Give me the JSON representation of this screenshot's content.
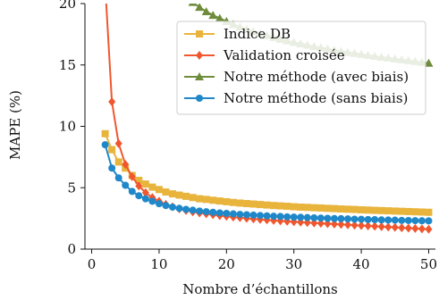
{
  "chart_data": {
    "type": "line",
    "xlabel": "Nombre d’échantillons",
    "ylabel": "MAPE (%)",
    "xlim": [
      -1,
      51
    ],
    "ylim": [
      0,
      20
    ],
    "x_ticks": [
      0,
      10,
      20,
      30,
      40,
      50
    ],
    "y_ticks": [
      0,
      5,
      10,
      15,
      20
    ],
    "grid": false,
    "legend_position": "top-right",
    "series": [
      {
        "name": "Indice DB",
        "color": "#e8b43c",
        "marker": "square",
        "x": [
          2,
          3,
          4,
          5,
          6,
          7,
          8,
          9,
          10,
          11,
          12,
          13,
          14,
          15,
          16,
          17,
          18,
          19,
          20,
          21,
          22,
          23,
          24,
          25,
          26,
          27,
          28,
          29,
          30,
          31,
          32,
          33,
          34,
          35,
          36,
          37,
          38,
          39,
          40,
          41,
          42,
          43,
          44,
          45,
          46,
          47,
          48,
          49,
          50
        ],
        "values": [
          9.4,
          8.1,
          7.1,
          6.6,
          6.0,
          5.6,
          5.3,
          5.05,
          4.85,
          4.65,
          4.5,
          4.4,
          4.3,
          4.2,
          4.1,
          4.05,
          3.98,
          3.92,
          3.86,
          3.8,
          3.75,
          3.71,
          3.67,
          3.63,
          3.59,
          3.55,
          3.52,
          3.49,
          3.45,
          3.42,
          3.4,
          3.37,
          3.35,
          3.32,
          3.3,
          3.27,
          3.25,
          3.23,
          3.2,
          3.18,
          3.16,
          3.14,
          3.12,
          3.1,
          3.08,
          3.06,
          3.04,
          3.02,
          3.0
        ]
      },
      {
        "name": "Validation croisée",
        "color": "#f0572e",
        "marker": "diamond",
        "x": [
          2,
          3,
          4,
          5,
          6,
          7,
          8,
          9,
          10,
          11,
          12,
          13,
          14,
          15,
          16,
          17,
          18,
          19,
          20,
          21,
          22,
          23,
          24,
          25,
          26,
          27,
          28,
          29,
          30,
          31,
          32,
          33,
          34,
          35,
          36,
          37,
          38,
          39,
          40,
          41,
          42,
          43,
          44,
          45,
          46,
          47,
          48,
          49,
          50
        ],
        "values": [
          21.5,
          12.0,
          8.6,
          6.9,
          5.9,
          5.15,
          4.6,
          4.2,
          3.9,
          3.65,
          3.45,
          3.28,
          3.15,
          3.04,
          2.95,
          2.87,
          2.8,
          2.73,
          2.67,
          2.61,
          2.56,
          2.51,
          2.46,
          2.42,
          2.38,
          2.34,
          2.3,
          2.26,
          2.23,
          2.19,
          2.16,
          2.13,
          2.1,
          2.07,
          2.04,
          2.01,
          1.98,
          1.95,
          1.92,
          1.89,
          1.86,
          1.83,
          1.8,
          1.77,
          1.74,
          1.71,
          1.68,
          1.65,
          1.62
        ]
      },
      {
        "name": "Notre méthode (avec biais)",
        "color": "#6e8c3c",
        "marker": "triangle",
        "x": [
          13,
          14,
          15,
          16,
          17,
          18,
          19,
          20,
          21,
          22,
          23,
          24,
          25,
          26,
          27,
          28,
          29,
          30,
          31,
          32,
          33,
          34,
          35,
          36,
          37,
          38,
          39,
          40,
          41,
          42,
          43,
          44,
          45,
          46,
          47,
          48,
          49,
          50
        ],
        "values": [
          21.2,
          20.6,
          20.1,
          19.7,
          19.35,
          19.05,
          18.8,
          18.55,
          18.3,
          18.1,
          17.9,
          17.72,
          17.55,
          17.4,
          17.25,
          17.1,
          16.97,
          16.85,
          16.73,
          16.62,
          16.51,
          16.41,
          16.31,
          16.21,
          16.12,
          16.03,
          15.95,
          15.87,
          15.79,
          15.71,
          15.64,
          15.57,
          15.5,
          15.43,
          15.36,
          15.29,
          15.22,
          15.15
        ]
      },
      {
        "name": "Notre méthode (sans biais)",
        "color": "#1f88c9",
        "marker": "circle",
        "x": [
          2,
          3,
          4,
          5,
          6,
          7,
          8,
          9,
          10,
          11,
          12,
          13,
          14,
          15,
          16,
          17,
          18,
          19,
          20,
          21,
          22,
          23,
          24,
          25,
          26,
          27,
          28,
          29,
          30,
          31,
          32,
          33,
          34,
          35,
          36,
          37,
          38,
          39,
          40,
          41,
          42,
          43,
          44,
          45,
          46,
          47,
          48,
          49,
          50
        ],
        "values": [
          8.5,
          6.6,
          5.8,
          5.2,
          4.7,
          4.35,
          4.1,
          3.9,
          3.7,
          3.55,
          3.42,
          3.32,
          3.24,
          3.17,
          3.1,
          3.05,
          3.0,
          2.95,
          2.91,
          2.87,
          2.83,
          2.8,
          2.77,
          2.74,
          2.71,
          2.68,
          2.66,
          2.63,
          2.61,
          2.59,
          2.57,
          2.55,
          2.53,
          2.51,
          2.49,
          2.48,
          2.46,
          2.44,
          2.43,
          2.41,
          2.4,
          2.38,
          2.37,
          2.36,
          2.34,
          2.33,
          2.32,
          2.31,
          2.3
        ]
      }
    ]
  }
}
